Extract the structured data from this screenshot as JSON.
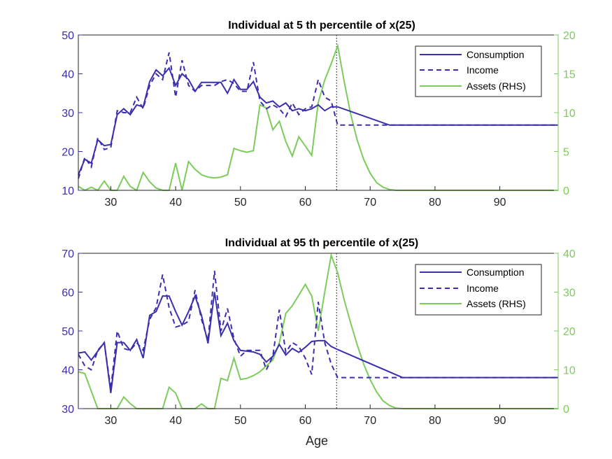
{
  "colors": {
    "consumption": "#3b2fae",
    "income": "#3b2fae",
    "assets": "#7ccc5c",
    "left_axis": "#3b2fae",
    "right_axis": "#7ccc5c",
    "frame": "#262626"
  },
  "chart_data": [
    {
      "type": "line",
      "title": "Individual at 5 th percentile of x(25)",
      "xlabel": "",
      "xlim": [
        25,
        99
      ],
      "xticks": [
        30,
        40,
        50,
        60,
        70,
        80,
        90
      ],
      "ylim_left": [
        10,
        50
      ],
      "yticks_left": [
        10,
        20,
        30,
        40,
        50
      ],
      "ylim_right": [
        0,
        20
      ],
      "yticks_right": [
        0,
        5,
        10,
        15,
        20
      ],
      "retirement_age": 65,
      "legend_position": "top-right",
      "series": [
        {
          "name": "Consumption",
          "axis": "left",
          "style": "solid",
          "x": [
            25,
            26,
            27,
            28,
            29,
            30,
            31,
            32,
            33,
            34,
            35,
            36,
            37,
            38,
            39,
            40,
            41,
            42,
            43,
            44,
            45,
            46,
            47,
            48,
            49,
            50,
            51,
            52,
            53,
            54,
            55,
            56,
            57,
            58,
            59,
            60,
            61,
            62,
            63,
            64,
            65,
            73,
            99
          ],
          "y": [
            14,
            18,
            17,
            23,
            21.5,
            21.8,
            29.5,
            31,
            29.5,
            32,
            31.5,
            38,
            41,
            39.5,
            41.5,
            37,
            40,
            38.5,
            35.5,
            37.8,
            37.8,
            37.8,
            37.8,
            35,
            38.5,
            36,
            36,
            38,
            34,
            32.5,
            33,
            31.5,
            32.5,
            30.5,
            31,
            30.5,
            31,
            32,
            30.5,
            31.5,
            31.5,
            26.8,
            26.8
          ]
        },
        {
          "name": "Income",
          "axis": "left",
          "style": "dashed",
          "x": [
            25,
            26,
            27,
            28,
            29,
            30,
            31,
            32,
            33,
            34,
            35,
            36,
            37,
            38,
            39,
            40,
            41,
            42,
            43,
            44,
            45,
            46,
            47,
            48,
            49,
            50,
            51,
            52,
            53,
            54,
            55,
            56,
            57,
            58,
            59,
            60,
            61,
            62,
            63,
            64,
            65,
            73,
            99
          ],
          "y": [
            13,
            18.5,
            16,
            23.5,
            20.5,
            21,
            30.5,
            30,
            30,
            34,
            31,
            37,
            40,
            38.5,
            45.5,
            34,
            43.5,
            37,
            35.5,
            37,
            37,
            37,
            38,
            38.5,
            37.5,
            35.5,
            35.5,
            43,
            33,
            31,
            32,
            31,
            29,
            32.5,
            29.5,
            31,
            31.5,
            38.5,
            34,
            33,
            26.8,
            26.8,
            26.8
          ]
        },
        {
          "name": "Assets (RHS)",
          "axis": "right",
          "style": "solid",
          "x": [
            25,
            26,
            27,
            28,
            29,
            30,
            31,
            32,
            33,
            34,
            35,
            36,
            37,
            38,
            39,
            40,
            41,
            42,
            43,
            44,
            45,
            46,
            47,
            48,
            49,
            50,
            51,
            52,
            53,
            54,
            55,
            56,
            57,
            58,
            59,
            60,
            61,
            62,
            63,
            64,
            65,
            66,
            67,
            68,
            69,
            70,
            71,
            72,
            73,
            74,
            99
          ],
          "y": [
            0.5,
            0,
            0.4,
            0,
            1.2,
            0,
            0,
            1.8,
            0.5,
            0,
            2.3,
            1.1,
            0.3,
            0,
            0,
            3.5,
            0,
            3.7,
            2.7,
            2,
            1.7,
            1.6,
            1.7,
            2,
            5.4,
            5.1,
            4.9,
            5.1,
            11,
            10.6,
            7.8,
            8.9,
            6.3,
            4.4,
            6.9,
            5.7,
            4.5,
            11.3,
            14.2,
            16.3,
            18.6,
            14,
            9.8,
            6.5,
            4,
            2.2,
            1,
            0.4,
            0.1,
            0,
            0
          ]
        }
      ]
    },
    {
      "type": "line",
      "title": "Individual at 95 th percentile of x(25)",
      "xlabel": "Age",
      "xlim": [
        25,
        99
      ],
      "xticks": [
        30,
        40,
        50,
        60,
        70,
        80,
        90
      ],
      "ylim_left": [
        30,
        70
      ],
      "yticks_left": [
        30,
        40,
        50,
        60,
        70
      ],
      "ylim_right": [
        0,
        40
      ],
      "yticks_right": [
        0,
        10,
        20,
        30,
        40
      ],
      "retirement_age": 65,
      "legend_position": "top-right",
      "series": [
        {
          "name": "Consumption",
          "axis": "left",
          "style": "solid",
          "x": [
            25,
            26,
            27,
            28,
            29,
            30,
            31,
            32,
            33,
            34,
            35,
            36,
            37,
            38,
            39,
            40,
            41,
            42,
            43,
            44,
            45,
            46,
            47,
            48,
            49,
            50,
            51,
            52,
            53,
            54,
            55,
            56,
            57,
            58,
            59,
            60,
            61,
            62,
            63,
            64,
            65,
            75,
            99
          ],
          "y": [
            44.3,
            44.6,
            42.5,
            44.8,
            47,
            34,
            47,
            47,
            45,
            47.8,
            43,
            54,
            55,
            59,
            59,
            55,
            51.5,
            55,
            59,
            54,
            46.8,
            60,
            48.8,
            52,
            47.5,
            45,
            44.8,
            44.6,
            44,
            42,
            43.5,
            46.5,
            43.8,
            45.5,
            44.5,
            45.8,
            47.3,
            47.5,
            47.5,
            46,
            45.2,
            38,
            38
          ]
        },
        {
          "name": "Income",
          "axis": "left",
          "style": "dashed",
          "x": [
            25,
            26,
            27,
            28,
            29,
            30,
            31,
            32,
            33,
            34,
            35,
            36,
            37,
            38,
            39,
            40,
            41,
            42,
            43,
            44,
            45,
            46,
            47,
            48,
            49,
            50,
            51,
            52,
            53,
            54,
            55,
            56,
            57,
            58,
            59,
            60,
            61,
            62,
            63,
            64,
            65,
            75,
            99
          ],
          "y": [
            44,
            41,
            40,
            45,
            47,
            35,
            50,
            45.5,
            45,
            47,
            45,
            53,
            56,
            64.5,
            56,
            51,
            51.5,
            52.5,
            60.5,
            53,
            47.5,
            65.5,
            50,
            55.8,
            48,
            43.5,
            45,
            45,
            45,
            40,
            43.5,
            55.5,
            44.5,
            47,
            46,
            43,
            38.8,
            57.5,
            47,
            41.5,
            38,
            38,
            38
          ]
        },
        {
          "name": "Assets (RHS)",
          "axis": "right",
          "style": "solid",
          "x": [
            25,
            26,
            27,
            28,
            29,
            30,
            31,
            32,
            33,
            34,
            35,
            36,
            37,
            38,
            39,
            40,
            41,
            42,
            43,
            44,
            45,
            46,
            47,
            48,
            49,
            50,
            51,
            52,
            53,
            54,
            55,
            56,
            57,
            58,
            59,
            60,
            61,
            62,
            63,
            64,
            65,
            66,
            67,
            68,
            69,
            70,
            71,
            72,
            73,
            74,
            75,
            99
          ],
          "y": [
            9.5,
            9,
            4.5,
            0,
            0,
            0,
            0,
            3,
            1.3,
            0,
            0,
            0,
            0,
            0,
            5.5,
            4,
            0,
            0,
            0,
            1.2,
            0,
            0,
            7.8,
            7.2,
            13,
            7.5,
            7.8,
            8.5,
            9.5,
            11,
            12.5,
            17,
            24.5,
            26.5,
            29.2,
            32,
            29,
            20,
            30,
            39.5,
            35,
            28,
            22,
            16.5,
            11.5,
            7.5,
            4.3,
            2,
            0.8,
            0.1,
            0,
            0
          ]
        }
      ]
    }
  ]
}
